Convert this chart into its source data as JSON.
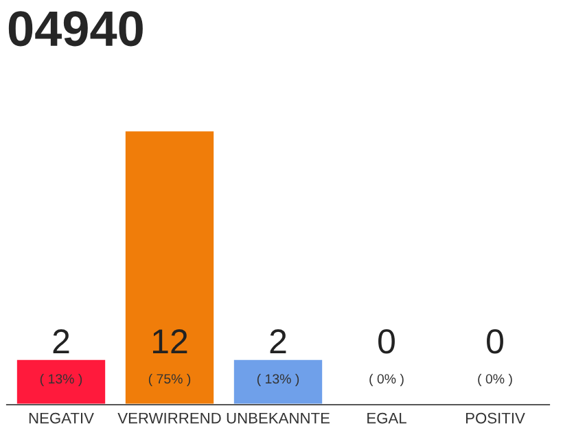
{
  "chart_data": {
    "type": "bar",
    "title": "04940",
    "categories": [
      "NEGATIV",
      "VERWIRREND",
      "UNBEKANNTE",
      "EGAL",
      "POSITIV"
    ],
    "values": [
      2,
      12,
      2,
      0,
      0
    ],
    "colors": [
      "#ff1a3c",
      "#f07d0a",
      "#6fa0ea",
      null,
      null
    ],
    "value_labels": [
      "2\n( 13% )",
      "12\n( 75% )",
      "2\n( 13% )",
      "0\n( 0% )",
      "0\n( 0% )"
    ],
    "grid": false,
    "legend": false
  }
}
